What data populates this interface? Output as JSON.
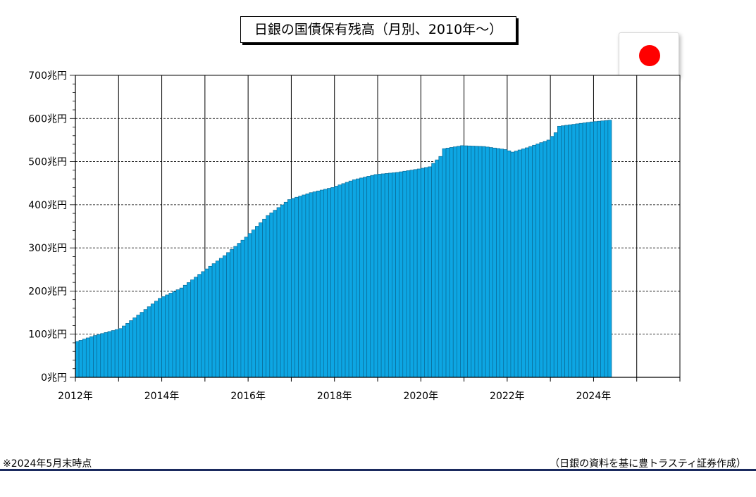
{
  "title": "日銀の国債保有残高（月別、2010年～）",
  "flag_icon": "japan-flag-icon",
  "notes": {
    "date_note": "※2024年5月末時点",
    "source": "（日銀の資料を基に豊トラスティ証券作成）"
  },
  "colors": {
    "bar": "#0da6e3",
    "bar_edge": "#0a6a96",
    "footer_line": "#1a2a5e"
  },
  "chart_data": {
    "type": "bar",
    "title": "日銀の国債保有残高（月別、2010年～）",
    "xlabel": "",
    "ylabel": "",
    "unit": "兆円",
    "ylim": [
      0,
      700
    ],
    "xlim": [
      "2012-01",
      "2025-12"
    ],
    "yticks": [
      "0兆円",
      "100兆円",
      "200兆円",
      "300兆円",
      "400兆円",
      "500兆円",
      "600兆円",
      "700兆円"
    ],
    "xticks": [
      "2012年",
      "2014年",
      "2016年",
      "2018年",
      "2020年",
      "2022年",
      "2024年"
    ],
    "grid": true,
    "start_month": "2012-01",
    "anchors": [
      [
        "2012-01",
        83
      ],
      [
        "2012-06",
        97
      ],
      [
        "2013-01",
        113
      ],
      [
        "2013-03",
        125
      ],
      [
        "2013-12",
        183
      ],
      [
        "2014-06",
        207
      ],
      [
        "2014-12",
        245
      ],
      [
        "2015-06",
        282
      ],
      [
        "2015-12",
        325
      ],
      [
        "2016-06",
        375
      ],
      [
        "2016-12",
        412
      ],
      [
        "2017-06",
        428
      ],
      [
        "2017-12",
        440
      ],
      [
        "2018-06",
        458
      ],
      [
        "2018-12",
        470
      ],
      [
        "2019-06",
        475
      ],
      [
        "2019-12",
        483
      ],
      [
        "2020-03",
        488
      ],
      [
        "2020-06",
        512
      ],
      [
        "2020-07",
        530
      ],
      [
        "2020-12",
        537
      ],
      [
        "2021-06",
        535
      ],
      [
        "2021-12",
        528
      ],
      [
        "2022-02",
        522
      ],
      [
        "2022-06",
        532
      ],
      [
        "2022-12",
        550
      ],
      [
        "2023-02",
        567
      ],
      [
        "2023-03",
        582
      ],
      [
        "2023-12",
        592
      ],
      [
        "2024-05",
        596
      ]
    ]
  }
}
